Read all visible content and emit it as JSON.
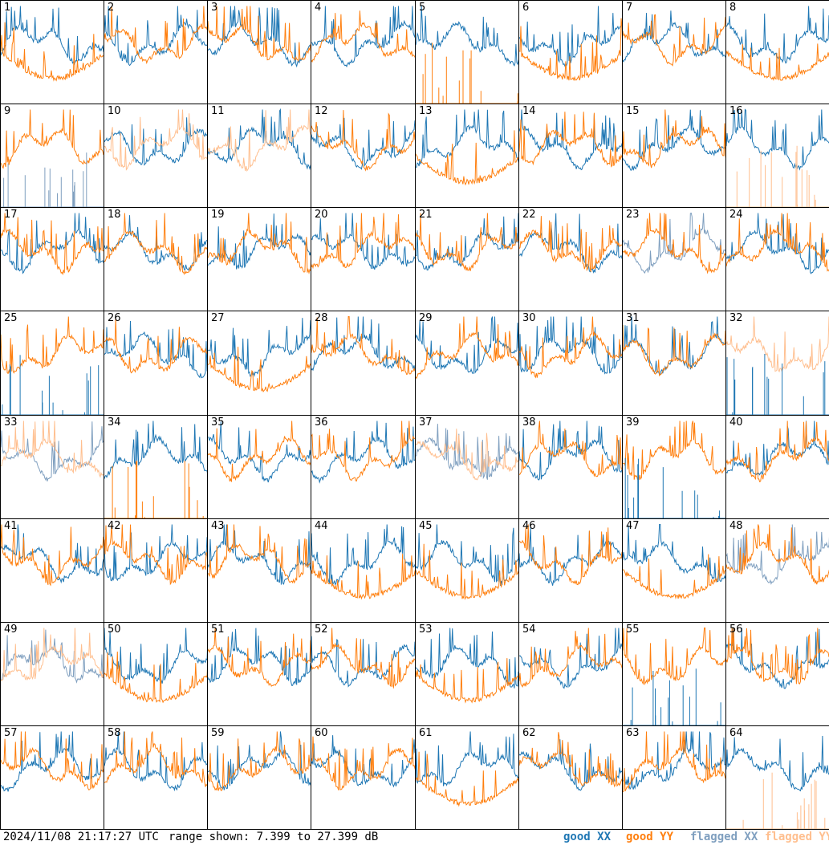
{
  "footer": {
    "timestamp": "2024/11/08 21:17:27 UTC",
    "range_text": "range shown: 7.399 to 27.399 dB",
    "legend": {
      "good_xx": "good XX",
      "good_yy": "good YY",
      "flagged_xx": "flagged XX",
      "flagged_yy": "flagged YY"
    }
  },
  "colors": {
    "good_xx": "#1f77b4",
    "good_yy": "#ff7f0e",
    "flagged_xx": "#7f9fbf",
    "flagged_yy": "#ffbf8f"
  },
  "chart_data": {
    "type": "line",
    "ylim": [
      7.399,
      27.399
    ],
    "grid": false,
    "panels": [
      {
        "id": "1",
        "profile": "decay",
        "xx": "good",
        "yy": "good"
      },
      {
        "id": "2",
        "profile": "normal",
        "xx": "good",
        "yy": "good"
      },
      {
        "id": "3",
        "profile": "normal",
        "xx": "good",
        "yy": "good"
      },
      {
        "id": "4",
        "profile": "normal",
        "xx": "good",
        "yy": "good"
      },
      {
        "id": "5",
        "profile": "normal",
        "xx": "good",
        "yy": "good",
        "yy_low": true
      },
      {
        "id": "6",
        "profile": "decay",
        "xx": "good",
        "yy": "good"
      },
      {
        "id": "7",
        "profile": "normal",
        "xx": "good",
        "yy": "good"
      },
      {
        "id": "8",
        "profile": "decay",
        "xx": "good",
        "yy": "good"
      },
      {
        "id": "9",
        "profile": "normal",
        "xx": "flagged",
        "yy": "good",
        "xx_low": true
      },
      {
        "id": "10",
        "profile": "normal",
        "xx": "good",
        "yy": "flagged"
      },
      {
        "id": "11",
        "profile": "normal",
        "xx": "good",
        "yy": "flagged"
      },
      {
        "id": "12",
        "profile": "normal",
        "xx": "good",
        "yy": "good"
      },
      {
        "id": "13",
        "profile": "decay",
        "xx": "good",
        "yy": "good"
      },
      {
        "id": "14",
        "profile": "normal",
        "xx": "good",
        "yy": "good"
      },
      {
        "id": "15",
        "profile": "normal",
        "xx": "good",
        "yy": "good"
      },
      {
        "id": "16",
        "profile": "normal",
        "xx": "good",
        "yy": "flagged",
        "yy_low": true
      },
      {
        "id": "17",
        "profile": "normal",
        "xx": "good",
        "yy": "good"
      },
      {
        "id": "18",
        "profile": "normal",
        "xx": "good",
        "yy": "good"
      },
      {
        "id": "19",
        "profile": "normal",
        "xx": "good",
        "yy": "good"
      },
      {
        "id": "20",
        "profile": "normal",
        "xx": "good",
        "yy": "good"
      },
      {
        "id": "21",
        "profile": "normal",
        "xx": "good",
        "yy": "good"
      },
      {
        "id": "22",
        "profile": "normal",
        "xx": "good",
        "yy": "good"
      },
      {
        "id": "23",
        "profile": "normal",
        "xx": "flagged",
        "yy": "good",
        "xx_noisy": true
      },
      {
        "id": "24",
        "profile": "normal",
        "xx": "good",
        "yy": "good"
      },
      {
        "id": "25",
        "profile": "normal",
        "xx": "good",
        "yy": "good",
        "xx_low": true
      },
      {
        "id": "26",
        "profile": "normal",
        "xx": "good",
        "yy": "good"
      },
      {
        "id": "27",
        "profile": "decay",
        "xx": "good",
        "yy": "good"
      },
      {
        "id": "28",
        "profile": "normal",
        "xx": "good",
        "yy": "good"
      },
      {
        "id": "29",
        "profile": "normal",
        "xx": "good",
        "yy": "good"
      },
      {
        "id": "30",
        "profile": "normal",
        "xx": "good",
        "yy": "good"
      },
      {
        "id": "31",
        "profile": "normal",
        "xx": "good",
        "yy": "good"
      },
      {
        "id": "32",
        "profile": "normal",
        "xx": "good",
        "yy": "flagged",
        "xx_low": true
      },
      {
        "id": "33",
        "profile": "normal",
        "xx": "flagged",
        "yy": "flagged"
      },
      {
        "id": "34",
        "profile": "normal",
        "xx": "good",
        "yy": "good",
        "yy_low": true
      },
      {
        "id": "35",
        "profile": "normal",
        "xx": "good",
        "yy": "good"
      },
      {
        "id": "36",
        "profile": "normal",
        "xx": "good",
        "yy": "good"
      },
      {
        "id": "37",
        "profile": "normal",
        "xx": "flagged",
        "yy": "flagged"
      },
      {
        "id": "38",
        "profile": "normal",
        "xx": "good",
        "yy": "good"
      },
      {
        "id": "39",
        "profile": "normal",
        "xx": "good",
        "yy": "good",
        "xx_low": true
      },
      {
        "id": "40",
        "profile": "normal",
        "xx": "good",
        "yy": "good"
      },
      {
        "id": "41",
        "profile": "normal",
        "xx": "good",
        "yy": "good"
      },
      {
        "id": "42",
        "profile": "normal",
        "xx": "good",
        "yy": "good"
      },
      {
        "id": "43",
        "profile": "normal",
        "xx": "good",
        "yy": "good"
      },
      {
        "id": "44",
        "profile": "decay",
        "xx": "good",
        "yy": "good"
      },
      {
        "id": "45",
        "profile": "decay",
        "xx": "good",
        "yy": "good"
      },
      {
        "id": "46",
        "profile": "normal",
        "xx": "good",
        "yy": "good"
      },
      {
        "id": "47",
        "profile": "decay",
        "xx": "good",
        "yy": "good"
      },
      {
        "id": "48",
        "profile": "normal",
        "xx": "flagged",
        "yy": "good"
      },
      {
        "id": "49",
        "profile": "normal",
        "xx": "flagged",
        "yy": "flagged"
      },
      {
        "id": "50",
        "profile": "decay",
        "xx": "good",
        "yy": "good"
      },
      {
        "id": "51",
        "profile": "normal",
        "xx": "good",
        "yy": "good"
      },
      {
        "id": "52",
        "profile": "normal",
        "xx": "good",
        "yy": "good"
      },
      {
        "id": "53",
        "profile": "decay",
        "xx": "good",
        "yy": "good"
      },
      {
        "id": "54",
        "profile": "normal",
        "xx": "good",
        "yy": "good"
      },
      {
        "id": "55",
        "profile": "normal",
        "xx": "good",
        "yy": "good",
        "xx_low": true
      },
      {
        "id": "56",
        "profile": "normal",
        "xx": "good",
        "yy": "good"
      },
      {
        "id": "57",
        "profile": "normal",
        "xx": "good",
        "yy": "good"
      },
      {
        "id": "58",
        "profile": "normal",
        "xx": "good",
        "yy": "good"
      },
      {
        "id": "59",
        "profile": "normal",
        "xx": "good",
        "yy": "good"
      },
      {
        "id": "60",
        "profile": "normal",
        "xx": "good",
        "yy": "good"
      },
      {
        "id": "61",
        "profile": "decay",
        "xx": "good",
        "yy": "good"
      },
      {
        "id": "62",
        "profile": "normal",
        "xx": "good",
        "yy": "good"
      },
      {
        "id": "63",
        "profile": "normal",
        "xx": "good",
        "yy": "good"
      },
      {
        "id": "64",
        "profile": "normal",
        "xx": "good",
        "yy": "flagged",
        "yy_low": true
      }
    ]
  }
}
